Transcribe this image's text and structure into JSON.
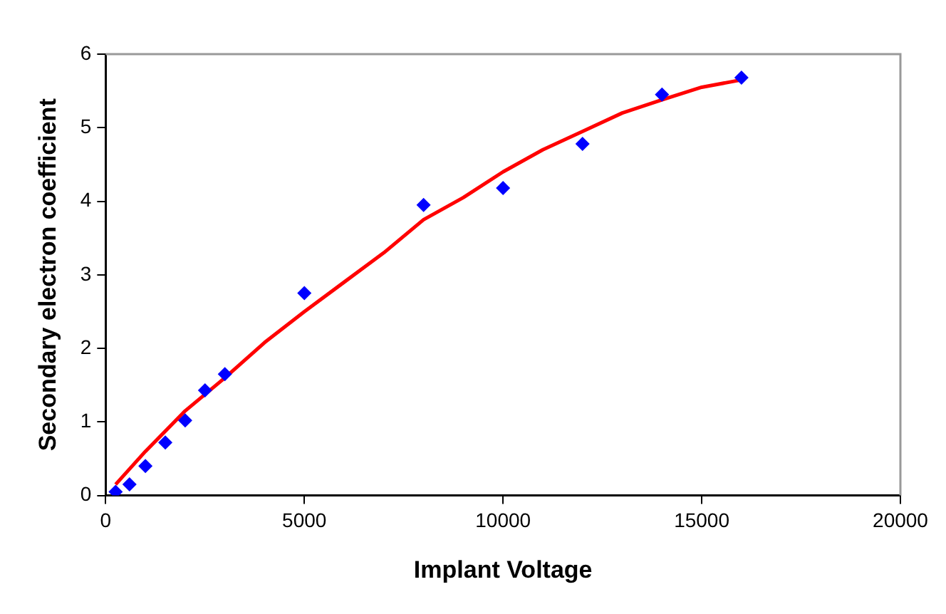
{
  "chart_data": {
    "type": "scatter",
    "xlabel": "Implant Voltage",
    "ylabel": "Secondary electron coefficient",
    "xlim": [
      0,
      20000
    ],
    "xticks": [
      0,
      5000,
      10000,
      15000,
      20000
    ],
    "ylim": [
      0,
      6
    ],
    "yticks": [
      0,
      1,
      2,
      3,
      4,
      5,
      6
    ],
    "grid": false,
    "legend": false,
    "marker": "diamond",
    "series": [
      {
        "color": "#0000ff",
        "x": [
          250,
          600,
          1000,
          1500,
          2000,
          2500,
          3000,
          5000,
          8000,
          10000,
          12000,
          14000,
          16000
        ],
        "values": [
          0.05,
          0.15,
          0.4,
          0.72,
          1.02,
          1.43,
          1.65,
          2.75,
          3.95,
          4.18,
          4.78,
          5.45,
          5.68
        ]
      },
      {
        "type": "line",
        "color": "#ff0000",
        "marker": "none",
        "x": [
          250,
          1000,
          2000,
          3000,
          4000,
          5000,
          6000,
          7000,
          8000,
          9000,
          10000,
          11000,
          12000,
          13000,
          14000,
          15000,
          16000
        ],
        "values": [
          0.15,
          0.6,
          1.15,
          1.6,
          2.08,
          2.5,
          2.9,
          3.3,
          3.75,
          4.05,
          4.4,
          4.7,
          4.95,
          5.2,
          5.38,
          5.55,
          5.65
        ]
      }
    ]
  }
}
